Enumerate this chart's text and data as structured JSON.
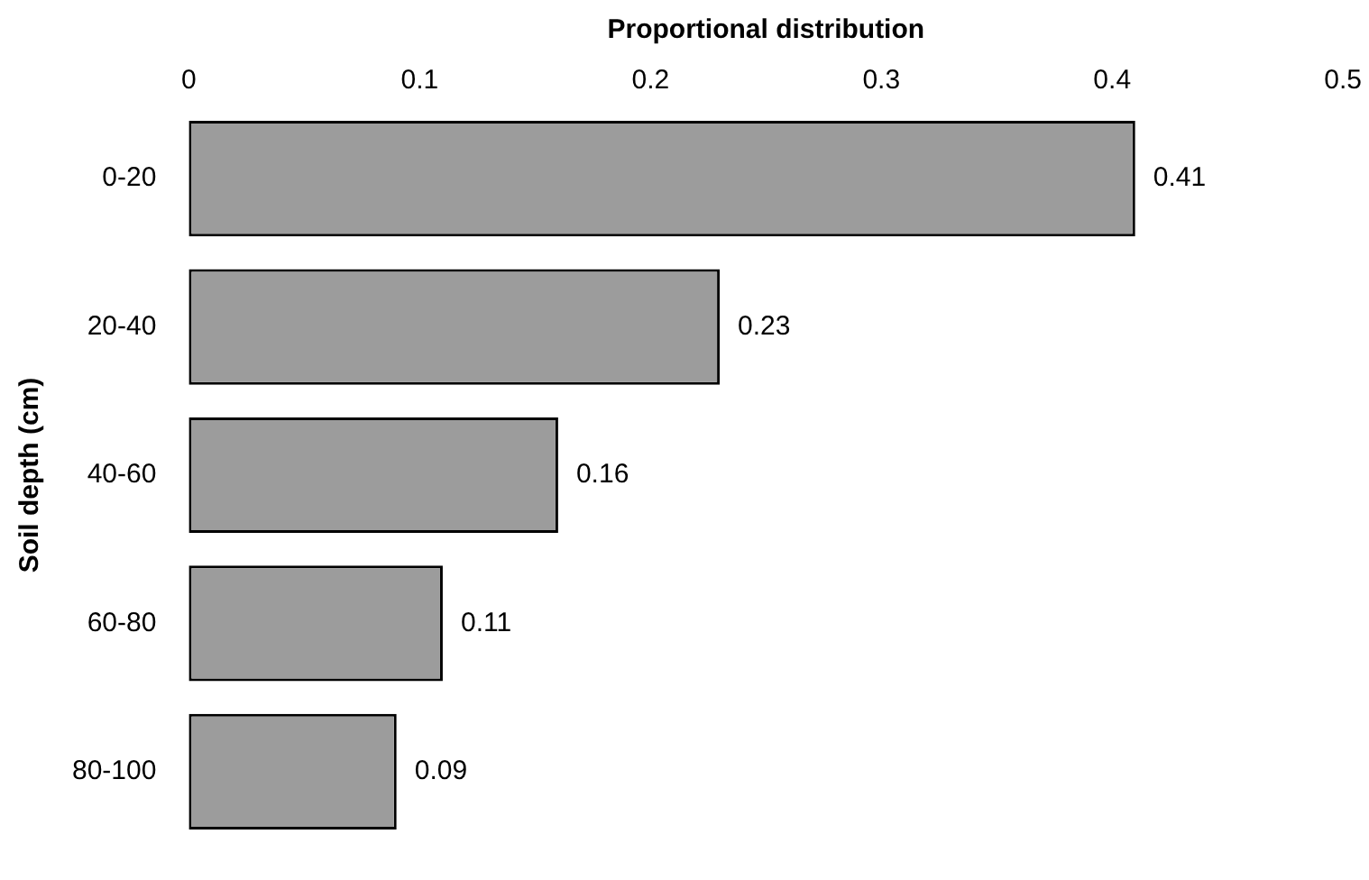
{
  "chart_data": {
    "type": "bar",
    "orientation": "horizontal",
    "xlabel": "Proportional distribution",
    "ylabel": "Soil depth (cm)",
    "categories": [
      "0-20",
      "20-40",
      "40-60",
      "60-80",
      "80-100"
    ],
    "values": [
      0.41,
      0.23,
      0.16,
      0.11,
      0.09
    ],
    "color": "#9c9c9c",
    "xlim": [
      0,
      0.5
    ],
    "xticks": [
      0,
      0.1,
      0.2,
      0.3,
      0.4,
      0.5
    ],
    "grid": false,
    "legend": false,
    "data_labels": true
  }
}
